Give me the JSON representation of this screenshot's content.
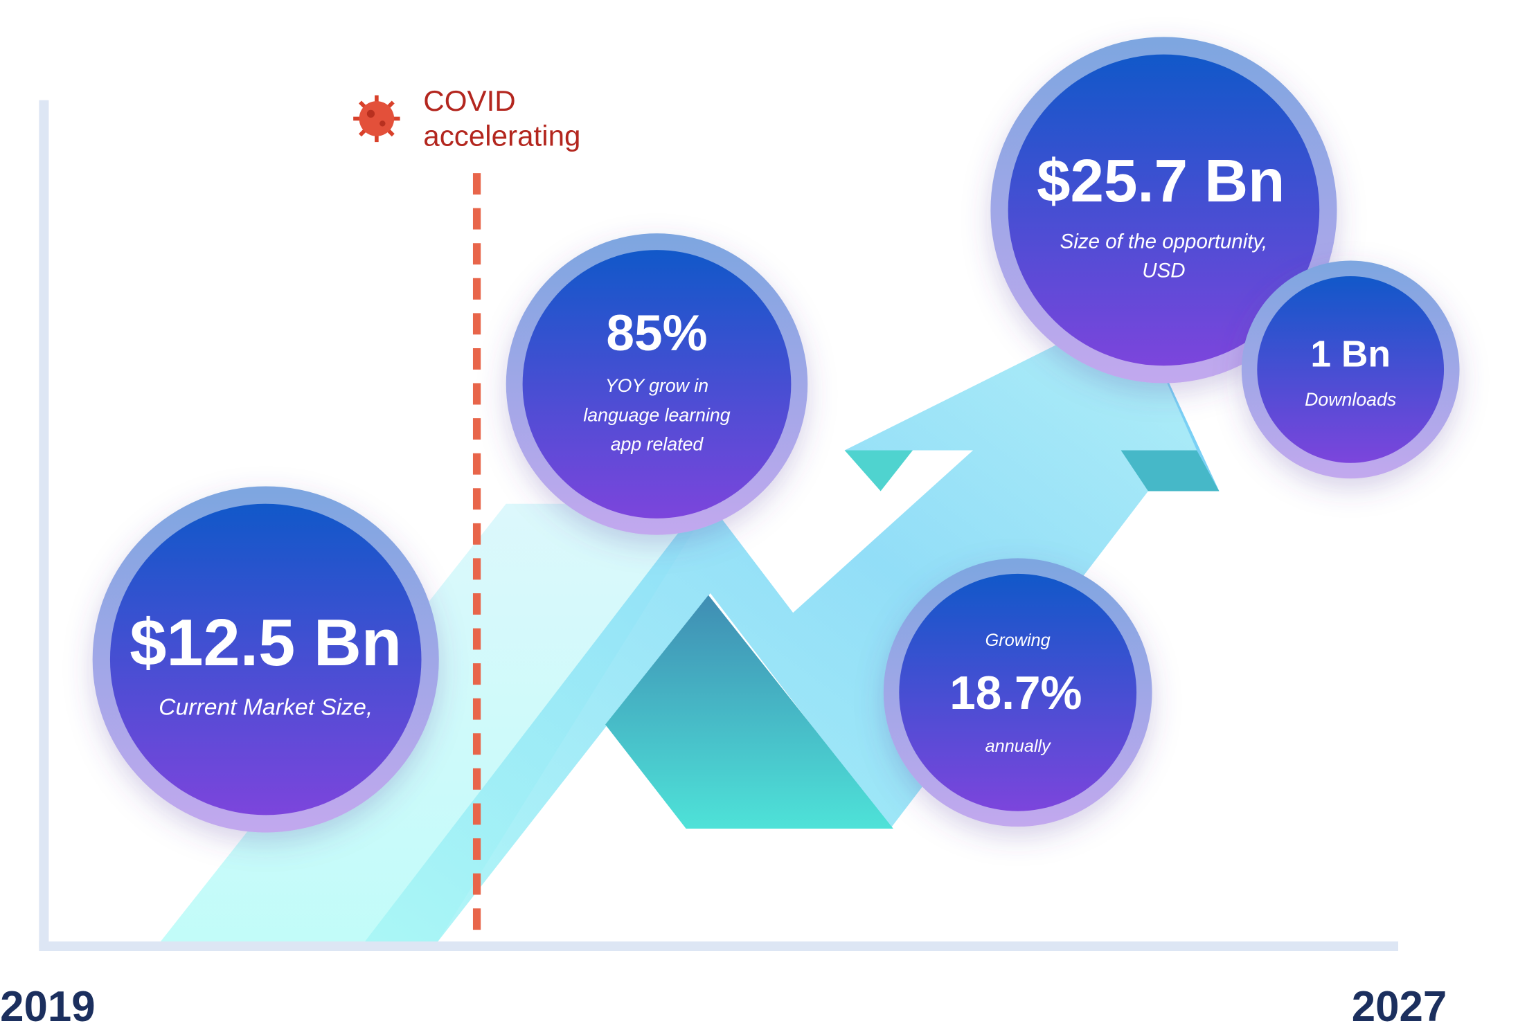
{
  "covid": {
    "line1": "COVID",
    "line2": "accelerating"
  },
  "bubbles": [
    {
      "headline": "$12.5 Bn",
      "caption": [
        "Current Market Size,"
      ]
    },
    {
      "headline": "85%",
      "caption": [
        "YOY grow in",
        "language learning",
        "app related"
      ]
    },
    {
      "headline": "$25.7 Bn",
      "caption": [
        "Size of the opportunity,",
        "USD"
      ]
    },
    {
      "headline": "1 Bn",
      "caption": [
        "Downloads"
      ]
    },
    {
      "pre": "Growing",
      "headline": "18.7%",
      "caption": [
        "annually"
      ]
    }
  ],
  "axis": {
    "start": "2019",
    "end": "2027"
  }
}
